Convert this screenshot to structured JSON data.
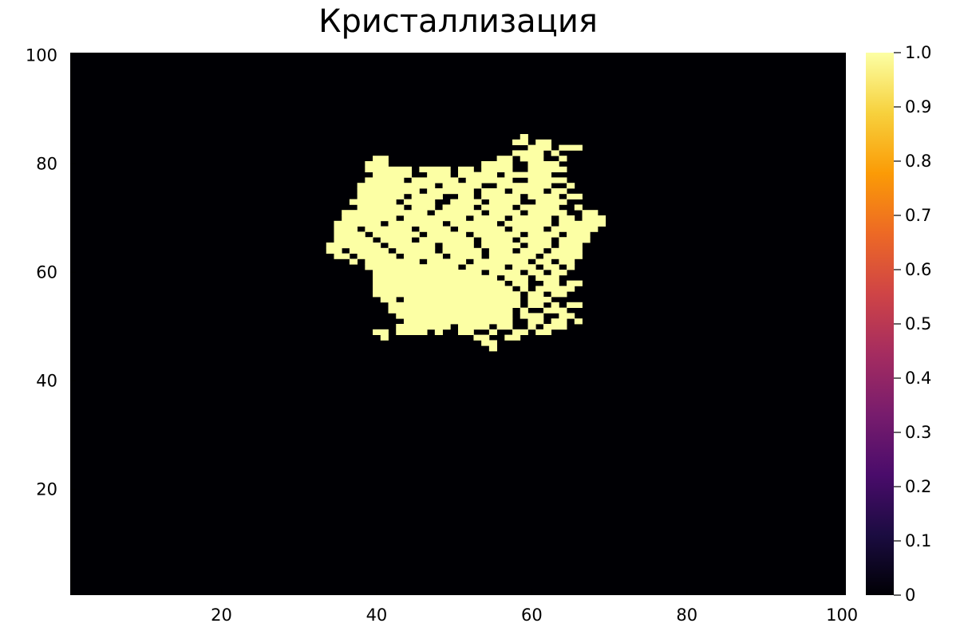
{
  "chart_data": {
    "type": "heatmap",
    "title": "Кристаллизация",
    "xlabel": "",
    "ylabel": "",
    "xlim": [
      0.5,
      100.5
    ],
    "ylim": [
      0.5,
      100.5
    ],
    "x_ticks": [
      "20",
      "40",
      "60",
      "80",
      "100"
    ],
    "x_tick_values": [
      20,
      40,
      60,
      80,
      100
    ],
    "y_ticks": [
      "20",
      "40",
      "60",
      "80",
      "100"
    ],
    "y_tick_values": [
      20,
      40,
      60,
      80,
      100
    ],
    "grid": false,
    "colormap": "inferno",
    "background_color": "#000004",
    "crystal_color": "#fcffa4",
    "colorbar": {
      "range": [
        0,
        1
      ],
      "ticks": [
        "0",
        "0.1",
        "0.2",
        "0.3",
        "0.4",
        "0.5",
        "0.6",
        "0.7",
        "0.8",
        "0.9",
        "1.0"
      ],
      "tick_values": [
        0,
        0.1,
        0.2,
        0.3,
        0.4,
        0.5,
        0.6,
        0.7,
        0.8,
        0.9,
        1.0
      ],
      "stops": [
        "#000004",
        "#1b0c41",
        "#4a0c6b",
        "#781c6d",
        "#a52c60",
        "#cf4446",
        "#ed6925",
        "#fb9b06",
        "#f7d13d",
        "#fcffa4"
      ]
    },
    "value_outside_crystal": 0,
    "crystal_row_y_first": 85,
    "crystal_rows_x_intervals_value_1": [
      [
        [
          59,
          59
        ]
      ],
      [
        [
          58,
          59
        ],
        [
          61,
          62
        ]
      ],
      [
        [
          60,
          62
        ],
        [
          64,
          66
        ]
      ],
      [
        [
          58,
          61
        ],
        [
          63,
          63
        ]
      ],
      [
        [
          40,
          41
        ],
        [
          56,
          57
        ],
        [
          59,
          61
        ],
        [
          64,
          64
        ]
      ],
      [
        [
          39,
          41
        ],
        [
          54,
          57
        ],
        [
          60,
          63
        ]
      ],
      [
        [
          39,
          44
        ],
        [
          46,
          49
        ],
        [
          51,
          52
        ],
        [
          54,
          57
        ],
        [
          60,
          64
        ]
      ],
      [
        [
          40,
          44
        ],
        [
          47,
          49
        ],
        [
          51,
          55
        ],
        [
          57,
          62
        ]
      ],
      [
        [
          39,
          43
        ],
        [
          45,
          50
        ],
        [
          52,
          57
        ],
        [
          60,
          64
        ]
      ],
      [
        [
          38,
          47
        ],
        [
          49,
          53
        ],
        [
          56,
          62
        ],
        [
          65,
          65
        ]
      ],
      [
        [
          38,
          45
        ],
        [
          47,
          52
        ],
        [
          54,
          56
        ],
        [
          58,
          61
        ],
        [
          63,
          64
        ]
      ],
      [
        [
          38,
          43
        ],
        [
          45,
          48
        ],
        [
          51,
          52
        ],
        [
          54,
          58
        ],
        [
          60,
          63
        ],
        [
          65,
          66
        ]
      ],
      [
        [
          37,
          42
        ],
        [
          44,
          47
        ],
        [
          50,
          53
        ],
        [
          55,
          58
        ],
        [
          61,
          64
        ]
      ],
      [
        [
          38,
          43
        ],
        [
          45,
          47
        ],
        [
          49,
          52
        ],
        [
          54,
          57
        ],
        [
          59,
          63
        ],
        [
          66,
          66
        ]
      ],
      [
        [
          36,
          46
        ],
        [
          48,
          53
        ],
        [
          55,
          58
        ],
        [
          60,
          64
        ],
        [
          67,
          68
        ]
      ],
      [
        [
          36,
          42
        ],
        [
          44,
          51
        ],
        [
          53,
          56
        ],
        [
          58,
          62
        ],
        [
          64,
          65
        ],
        [
          67,
          69
        ]
      ],
      [
        [
          35,
          40
        ],
        [
          42,
          48
        ],
        [
          50,
          55
        ],
        [
          57,
          62
        ],
        [
          64,
          69
        ]
      ],
      [
        [
          35,
          37
        ],
        [
          39,
          44
        ],
        [
          46,
          49
        ],
        [
          51,
          56
        ],
        [
          58,
          61
        ],
        [
          63,
          68
        ]
      ],
      [
        [
          35,
          38
        ],
        [
          40,
          45
        ],
        [
          47,
          51
        ],
        [
          53,
          58
        ],
        [
          60,
          63
        ],
        [
          65,
          67
        ]
      ],
      [
        [
          35,
          39
        ],
        [
          41,
          44
        ],
        [
          46,
          52
        ],
        [
          54,
          57
        ],
        [
          59,
          62
        ],
        [
          64,
          67
        ]
      ],
      [
        [
          34,
          40
        ],
        [
          42,
          47
        ],
        [
          49,
          52
        ],
        [
          54,
          58
        ],
        [
          60,
          62
        ],
        [
          64,
          66
        ]
      ],
      [
        [
          34,
          35
        ],
        [
          37,
          41
        ],
        [
          43,
          47
        ],
        [
          49,
          53
        ],
        [
          55,
          57
        ],
        [
          59,
          61
        ],
        [
          63,
          66
        ]
      ],
      [
        [
          35,
          36
        ],
        [
          38,
          42
        ],
        [
          44,
          48
        ],
        [
          50,
          53
        ],
        [
          55,
          60
        ],
        [
          62,
          66
        ]
      ],
      [
        [
          37,
          37
        ],
        [
          39,
          45
        ],
        [
          47,
          51
        ],
        [
          53,
          59
        ],
        [
          61,
          62
        ],
        [
          64,
          65
        ]
      ],
      [
        [
          39,
          50
        ],
        [
          52,
          56
        ],
        [
          58,
          60
        ],
        [
          62,
          63
        ],
        [
          65,
          65
        ]
      ],
      [
        [
          40,
          53
        ],
        [
          55,
          58
        ],
        [
          60,
          61
        ],
        [
          63,
          64
        ]
      ],
      [
        [
          40,
          55
        ],
        [
          57,
          59
        ],
        [
          61,
          63
        ]
      ],
      [
        [
          40,
          56
        ],
        [
          58,
          59
        ],
        [
          62,
          63
        ],
        [
          65,
          66
        ]
      ],
      [
        [
          40,
          57
        ],
        [
          59,
          59
        ],
        [
          61,
          65
        ]
      ],
      [
        [
          40,
          58
        ],
        [
          60,
          61
        ],
        [
          63,
          64
        ]
      ],
      [
        [
          41,
          42
        ],
        [
          44,
          58
        ],
        [
          60,
          62
        ]
      ],
      [
        [
          42,
          58
        ],
        [
          60,
          61
        ],
        [
          63,
          63
        ],
        [
          65,
          66
        ]
      ],
      [
        [
          42,
          57
        ],
        [
          59,
          59
        ],
        [
          62,
          64
        ]
      ],
      [
        [
          43,
          57
        ],
        [
          59,
          61
        ],
        [
          64,
          65
        ]
      ],
      [
        [
          44,
          57
        ],
        [
          60,
          61
        ],
        [
          63,
          64
        ],
        [
          66,
          66
        ]
      ],
      [
        [
          43,
          49
        ],
        [
          51,
          54
        ],
        [
          56,
          57
        ],
        [
          60,
          60
        ],
        [
          62,
          64
        ]
      ],
      [
        [
          40,
          41
        ],
        [
          43,
          46
        ],
        [
          48,
          48
        ],
        [
          51,
          52
        ],
        [
          55,
          55
        ],
        [
          58,
          59
        ],
        [
          61,
          62
        ]
      ],
      [
        [
          41,
          41
        ],
        [
          53,
          54
        ],
        [
          57,
          58
        ]
      ],
      [
        [
          54,
          55
        ]
      ],
      [
        [
          55,
          55
        ]
      ]
    ]
  }
}
